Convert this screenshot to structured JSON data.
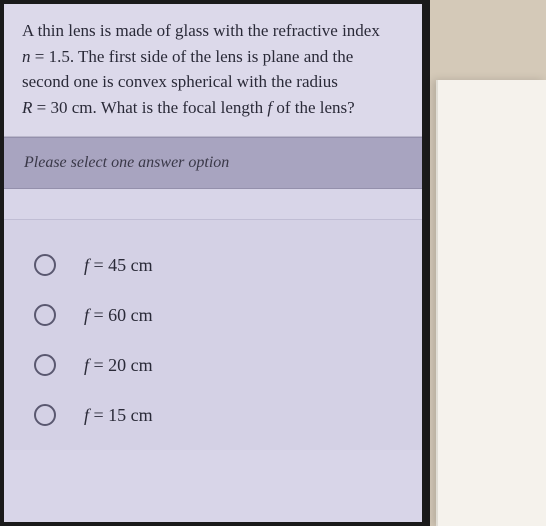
{
  "question": {
    "line1_pre": "A thin lens is made of glass with the refractive index",
    "var_n": "n",
    "eq_n": " = 1.5",
    "line2_post": ". The first side of the lens is plane and the second one is convex spherical with the radius",
    "var_R": "R",
    "eq_R": " = 30 cm",
    "line3_post": ". What is the focal length ",
    "var_f": "f",
    "line3_end": " of the lens?"
  },
  "instruction": "Please select one answer option",
  "options": [
    {
      "var": "f",
      "value": " = 45 cm"
    },
    {
      "var": "f",
      "value": " = 60 cm"
    },
    {
      "var": "f",
      "value": " = 20 cm"
    },
    {
      "var": "f",
      "value": " = 15 cm"
    }
  ],
  "colors": {
    "screen_bg": "#d8d5e8",
    "instruction_bg": "#a8a4c0",
    "options_bg": "#d4d1e5",
    "text": "#2a2a38",
    "radio_border": "#5a5870",
    "frame": "#1a1a1a",
    "outer_bg": "#d4c9b8"
  }
}
